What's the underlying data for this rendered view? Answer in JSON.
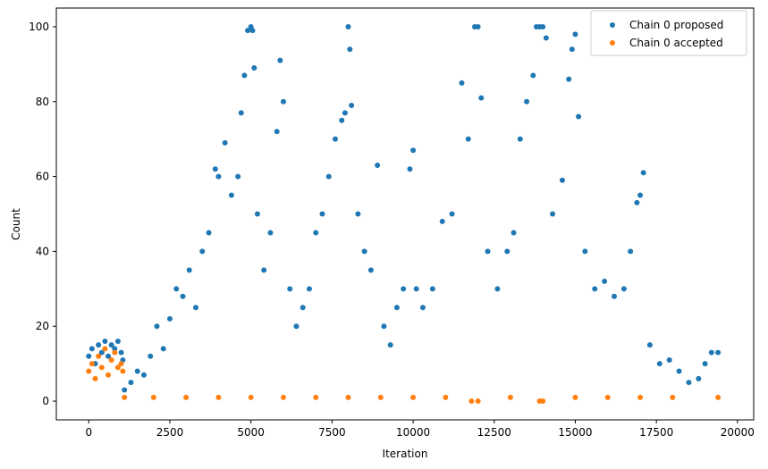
{
  "chart_data": {
    "type": "scatter",
    "title": "",
    "xlabel": "Iteration",
    "ylabel": "Count",
    "xlim": [
      -1000,
      20500
    ],
    "ylim": [
      -5,
      105
    ],
    "x_ticks": [
      0,
      2500,
      5000,
      7500,
      10000,
      12500,
      15000,
      17500,
      20000
    ],
    "y_ticks": [
      0,
      20,
      40,
      60,
      80,
      100
    ],
    "x_tick_labels": [
      "0",
      "2500",
      "5000",
      "7500",
      "10000",
      "12500",
      "15000",
      "17500",
      "20000"
    ],
    "y_tick_labels": [
      "0",
      "20",
      "40",
      "60",
      "80",
      "100"
    ],
    "grid": false,
    "legend": {
      "position": "top-right"
    },
    "series": [
      {
        "name": "Chain 0 proposed",
        "color": "#1f77b4",
        "marker": "circle",
        "points": [
          [
            0,
            12
          ],
          [
            100,
            14
          ],
          [
            200,
            10
          ],
          [
            300,
            15
          ],
          [
            400,
            13
          ],
          [
            500,
            16
          ],
          [
            600,
            12
          ],
          [
            700,
            15
          ],
          [
            800,
            14
          ],
          [
            900,
            16
          ],
          [
            1000,
            13
          ],
          [
            1050,
            11
          ],
          [
            1100,
            3
          ],
          [
            1300,
            5
          ],
          [
            1500,
            8
          ],
          [
            1700,
            7
          ],
          [
            1900,
            12
          ],
          [
            2100,
            20
          ],
          [
            2300,
            14
          ],
          [
            2500,
            22
          ],
          [
            2700,
            30
          ],
          [
            2900,
            28
          ],
          [
            3100,
            35
          ],
          [
            3300,
            25
          ],
          [
            3500,
            40
          ],
          [
            3700,
            45
          ],
          [
            3900,
            62
          ],
          [
            4000,
            60
          ],
          [
            4200,
            69
          ],
          [
            4400,
            55
          ],
          [
            4600,
            60
          ],
          [
            4700,
            77
          ],
          [
            4800,
            87
          ],
          [
            4900,
            99
          ],
          [
            5000,
            100
          ],
          [
            5050,
            99
          ],
          [
            5100,
            89
          ],
          [
            5200,
            50
          ],
          [
            5400,
            35
          ],
          [
            5600,
            45
          ],
          [
            5800,
            72
          ],
          [
            5900,
            91
          ],
          [
            6000,
            80
          ],
          [
            6200,
            30
          ],
          [
            6400,
            20
          ],
          [
            6600,
            25
          ],
          [
            6800,
            30
          ],
          [
            7000,
            45
          ],
          [
            7200,
            50
          ],
          [
            7400,
            60
          ],
          [
            7600,
            70
          ],
          [
            7800,
            75
          ],
          [
            7900,
            77
          ],
          [
            8000,
            100
          ],
          [
            8050,
            94
          ],
          [
            8100,
            79
          ],
          [
            8300,
            50
          ],
          [
            8500,
            40
          ],
          [
            8700,
            35
          ],
          [
            8900,
            63
          ],
          [
            9100,
            20
          ],
          [
            9300,
            15
          ],
          [
            9500,
            25
          ],
          [
            9700,
            30
          ],
          [
            9900,
            62
          ],
          [
            10000,
            67
          ],
          [
            10100,
            30
          ],
          [
            10300,
            25
          ],
          [
            10600,
            30
          ],
          [
            10900,
            48
          ],
          [
            11200,
            50
          ],
          [
            11500,
            85
          ],
          [
            11700,
            70
          ],
          [
            11900,
            100
          ],
          [
            12000,
            100
          ],
          [
            12100,
            81
          ],
          [
            12300,
            40
          ],
          [
            12600,
            30
          ],
          [
            12900,
            40
          ],
          [
            13100,
            45
          ],
          [
            13300,
            70
          ],
          [
            13500,
            80
          ],
          [
            13700,
            87
          ],
          [
            13800,
            100
          ],
          [
            13900,
            100
          ],
          [
            14000,
            100
          ],
          [
            14100,
            97
          ],
          [
            14300,
            50
          ],
          [
            14600,
            59
          ],
          [
            14800,
            86
          ],
          [
            14900,
            94
          ],
          [
            15000,
            98
          ],
          [
            15100,
            76
          ],
          [
            15300,
            40
          ],
          [
            15600,
            30
          ],
          [
            15900,
            32
          ],
          [
            16200,
            28
          ],
          [
            16500,
            30
          ],
          [
            16700,
            40
          ],
          [
            16900,
            53
          ],
          [
            17000,
            55
          ],
          [
            17100,
            61
          ],
          [
            17300,
            15
          ],
          [
            17600,
            10
          ],
          [
            17900,
            11
          ],
          [
            18200,
            8
          ],
          [
            18500,
            5
          ],
          [
            18800,
            6
          ],
          [
            19000,
            10
          ],
          [
            19200,
            13
          ],
          [
            19400,
            13
          ]
        ]
      },
      {
        "name": "Chain 0 accepted",
        "color": "#ff7f0e",
        "marker": "circle",
        "points": [
          [
            0,
            8
          ],
          [
            100,
            10
          ],
          [
            200,
            6
          ],
          [
            300,
            12
          ],
          [
            400,
            9
          ],
          [
            500,
            14
          ],
          [
            600,
            7
          ],
          [
            700,
            11
          ],
          [
            800,
            13
          ],
          [
            900,
            9
          ],
          [
            1000,
            10
          ],
          [
            1050,
            8
          ],
          [
            1100,
            1
          ],
          [
            2000,
            1
          ],
          [
            3000,
            1
          ],
          [
            4000,
            1
          ],
          [
            5000,
            1
          ],
          [
            6000,
            1
          ],
          [
            7000,
            1
          ],
          [
            8000,
            1
          ],
          [
            9000,
            1
          ],
          [
            10000,
            1
          ],
          [
            11000,
            1
          ],
          [
            11800,
            0
          ],
          [
            12000,
            0
          ],
          [
            13000,
            1
          ],
          [
            13900,
            0
          ],
          [
            14000,
            0
          ],
          [
            15000,
            1
          ],
          [
            16000,
            1
          ],
          [
            17000,
            1
          ],
          [
            18000,
            1
          ],
          [
            19400,
            1
          ]
        ]
      }
    ]
  }
}
